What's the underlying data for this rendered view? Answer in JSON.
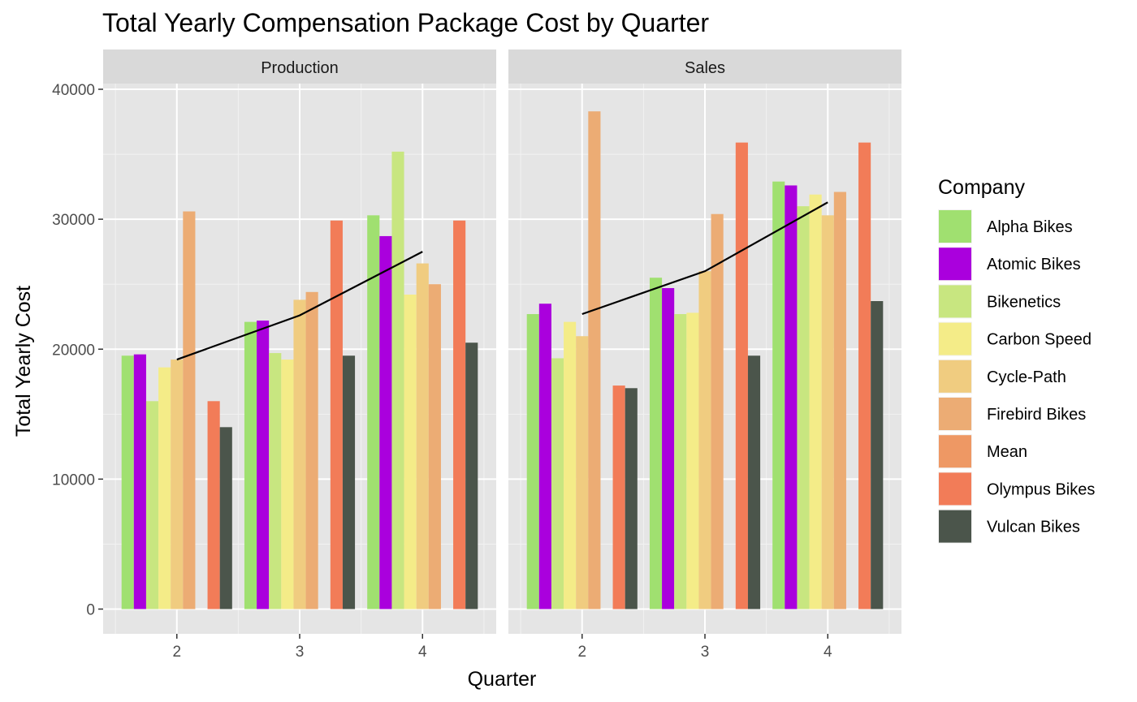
{
  "chart_data": {
    "type": "bar",
    "title": "Total Yearly Compensation Package Cost by Quarter",
    "xlabel": "Quarter",
    "ylabel": "Total Yearly Cost",
    "ylim": [
      0,
      40000
    ],
    "y_ticks": [
      0,
      10000,
      20000,
      30000,
      40000
    ],
    "grid": true,
    "legend": {
      "title": "Company",
      "position": "right"
    },
    "categories": [
      "2",
      "3",
      "4"
    ],
    "series_order": [
      "Alpha Bikes",
      "Atomic Bikes",
      "Bikenetics",
      "Carbon Speed",
      "Cycle-Path",
      "Firebird Bikes",
      "Mean",
      "Olympus Bikes",
      "Vulcan Bikes"
    ],
    "colors": {
      "Alpha Bikes": "#a0e070",
      "Atomic Bikes": "#aa00dd",
      "Bikenetics": "#c8e680",
      "Carbon Speed": "#f4ec88",
      "Cycle-Path": "#f0cc80",
      "Firebird Bikes": "#ecac74",
      "Mean": "#ee9864",
      "Olympus Bikes": "#f27c58",
      "Vulcan Bikes": "#4b554b"
    },
    "mean_line_color": "#000000",
    "panels": [
      {
        "name": "Production",
        "series": [
          {
            "name": "Alpha Bikes",
            "values": [
              19500,
              22100,
              30300
            ]
          },
          {
            "name": "Atomic Bikes",
            "values": [
              19600,
              22200,
              28700
            ]
          },
          {
            "name": "Bikenetics",
            "values": [
              16000,
              19700,
              35200
            ]
          },
          {
            "name": "Carbon Speed",
            "values": [
              18600,
              19200,
              24200
            ]
          },
          {
            "name": "Cycle-Path",
            "values": [
              19200,
              23800,
              26600
            ]
          },
          {
            "name": "Firebird Bikes",
            "values": [
              30600,
              24400,
              25000
            ]
          },
          {
            "name": "Mean",
            "values": [
              null,
              null,
              null
            ]
          },
          {
            "name": "Olympus Bikes",
            "values": [
              16000,
              29900,
              29900
            ]
          },
          {
            "name": "Vulcan Bikes",
            "values": [
              14000,
              19500,
              20500
            ]
          }
        ],
        "mean_line": [
          19200,
          22600,
          27500
        ]
      },
      {
        "name": "Sales",
        "series": [
          {
            "name": "Alpha Bikes",
            "values": [
              22700,
              25500,
              32900
            ]
          },
          {
            "name": "Atomic Bikes",
            "values": [
              23500,
              24700,
              32600
            ]
          },
          {
            "name": "Bikenetics",
            "values": [
              19300,
              22700,
              31000
            ]
          },
          {
            "name": "Carbon Speed",
            "values": [
              22100,
              22800,
              31900
            ]
          },
          {
            "name": "Cycle-Path",
            "values": [
              21000,
              26000,
              30300
            ]
          },
          {
            "name": "Firebird Bikes",
            "values": [
              38300,
              30400,
              32100
            ]
          },
          {
            "name": "Mean",
            "values": [
              null,
              null,
              null
            ]
          },
          {
            "name": "Olympus Bikes",
            "values": [
              17200,
              35900,
              35900
            ]
          },
          {
            "name": "Vulcan Bikes",
            "values": [
              17000,
              19500,
              23700
            ]
          }
        ],
        "mean_line": [
          22700,
          26000,
          31300
        ]
      }
    ]
  }
}
